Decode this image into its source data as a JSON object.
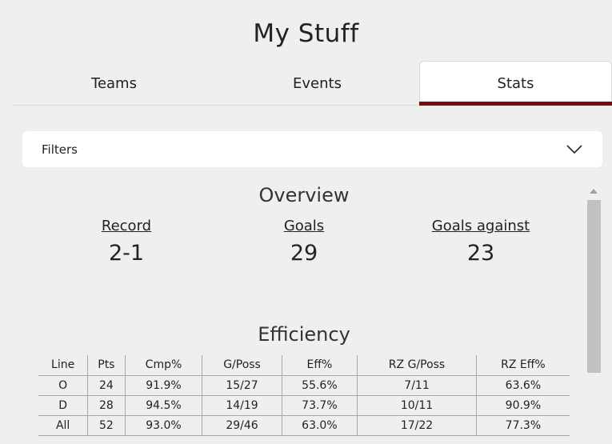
{
  "page": {
    "title": "My Stuff"
  },
  "tabs": [
    {
      "label": "Teams",
      "active": false
    },
    {
      "label": "Events",
      "active": false
    },
    {
      "label": "Stats",
      "active": true
    }
  ],
  "filters": {
    "label": "Filters",
    "icon": "chevron-down-icon"
  },
  "overview": {
    "title": "Overview",
    "stats": [
      {
        "label": "Record",
        "value": "2-1"
      },
      {
        "label": "Goals",
        "value": "29"
      },
      {
        "label": "Goals against",
        "value": "23"
      }
    ]
  },
  "efficiency": {
    "title": "Efficiency",
    "columns": [
      "Line",
      "Pts",
      "Cmp%",
      "G/Poss",
      "Eff%",
      "RZ G/Poss",
      "RZ Eff%"
    ],
    "rows": [
      [
        "O",
        "24",
        "91.9%",
        "15/27",
        "55.6%",
        "7/11",
        "63.6%"
      ],
      [
        "D",
        "28",
        "94.5%",
        "14/19",
        "73.7%",
        "10/11",
        "90.9%"
      ],
      [
        "All",
        "52",
        "93.0%",
        "29/46",
        "63.0%",
        "17/22",
        "77.3%"
      ]
    ]
  },
  "colors": {
    "background": "#efefef",
    "accent": "#7a0c0c",
    "card": "#ffffff"
  }
}
